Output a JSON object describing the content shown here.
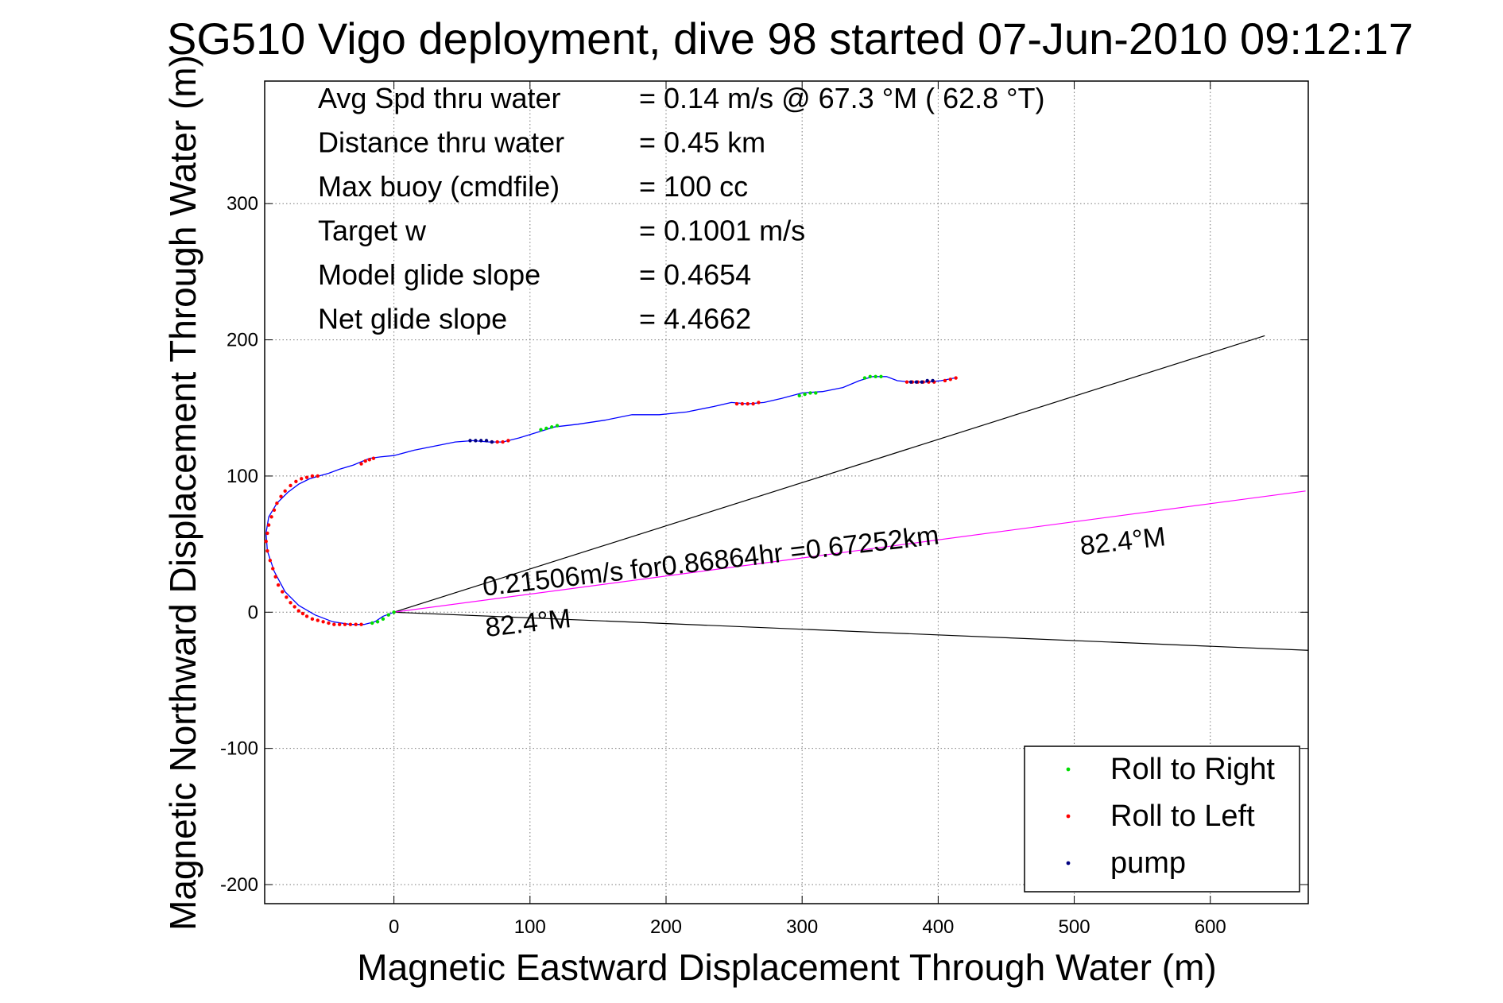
{
  "chart_data": {
    "type": "line",
    "title": "SG510 Vigo deployment, dive 98 started 07-Jun-2010 09:12:17",
    "xlabel": "Magnetic Eastward Displacement Through Water (m)",
    "ylabel": "Magnetic Northward Displacement Through Water (m)",
    "xlim": [
      -95,
      672
    ],
    "ylim": [
      -214,
      390
    ],
    "xticks": [
      0,
      100,
      200,
      300,
      400,
      500,
      600
    ],
    "yticks": [
      -200,
      -100,
      0,
      100,
      200,
      300
    ],
    "grid": true,
    "legend_position": "bottom-right",
    "summary": [
      {
        "label": "Avg Spd thru water",
        "value": "=  0.14 m/s @  67.3 °M ( 62.8 °T)"
      },
      {
        "label": "Distance thru water",
        "value": "=  0.45 km"
      },
      {
        "label": "Max buoy (cmdfile)",
        "value": "= 100 cc"
      },
      {
        "label": "Target w",
        "value": "= 0.1001 m/s"
      },
      {
        "label": "Model glide slope",
        "value": "= 0.4654"
      },
      {
        "label": "Net glide slope",
        "value": "= 4.4662"
      }
    ],
    "track": {
      "x": [
        0,
        -8,
        -14,
        -22,
        -32,
        -45,
        -58,
        -70,
        -80,
        -88,
        -93,
        -94,
        -92,
        -86,
        -78,
        -70,
        -62,
        -55,
        -48,
        -40,
        -30,
        -18,
        -10,
        0,
        15,
        30,
        45,
        58,
        70,
        80,
        92,
        105,
        118,
        135,
        155,
        175,
        195,
        215,
        235,
        248,
        260,
        272,
        285,
        300,
        315,
        330,
        342,
        352,
        362,
        370,
        380,
        392,
        402,
        412
      ],
      "y": [
        0,
        -3,
        -7,
        -9,
        -9,
        -7,
        -2,
        5,
        15,
        30,
        45,
        58,
        70,
        80,
        88,
        94,
        98,
        100,
        102,
        105,
        108,
        113,
        114,
        115,
        119,
        122,
        125,
        126,
        125,
        125,
        128,
        132,
        136,
        138,
        141,
        145,
        145,
        147,
        151,
        154,
        153,
        154,
        157,
        161,
        162,
        165,
        170,
        173,
        173,
        170,
        169,
        169,
        170,
        172
      ]
    },
    "markers": [
      {
        "name": "Roll to Right",
        "color": "#00dd00",
        "x": [
          -16,
          -12,
          -8,
          -4,
          0,
          108,
          112,
          116,
          120,
          298,
          302,
          306,
          310,
          346,
          350,
          354,
          358
        ],
        "y": [
          -8,
          -7,
          -5,
          -2,
          0,
          134,
          135,
          136,
          137,
          159,
          160,
          161,
          161,
          172,
          173,
          173,
          173
        ]
      },
      {
        "name": "Roll to Left",
        "color": "#ff0000",
        "x": [
          -94,
          -93,
          -92,
          -90,
          -88,
          -86,
          -83,
          -80,
          -76,
          -72,
          -68,
          -64,
          -60,
          -56,
          -93,
          -91,
          -89,
          -87,
          -85,
          -82,
          -79,
          -76,
          -73,
          -70,
          -67,
          -64,
          -60,
          -56,
          -52,
          -48,
          -44,
          -40,
          -36,
          -32,
          -28,
          -24,
          -24,
          -21,
          -18,
          -15,
          72,
          76,
          80,
          84,
          252,
          256,
          260,
          264,
          268,
          377,
          381,
          385,
          389,
          393,
          397,
          405,
          409,
          413
        ],
        "y": [
          52,
          58,
          64,
          70,
          75,
          80,
          85,
          89,
          93,
          96,
          98,
          99,
          100,
          100,
          45,
          38,
          32,
          26,
          20,
          15,
          11,
          7,
          4,
          1,
          -1,
          -3,
          -5,
          -6,
          -7,
          -8,
          -9,
          -9,
          -9,
          -9,
          -9,
          -9,
          109,
          111,
          112,
          113,
          125,
          125,
          125,
          126,
          153,
          153,
          153,
          153,
          154,
          169,
          169,
          169,
          169,
          169,
          169,
          170,
          171,
          172
        ]
      },
      {
        "name": "pump",
        "color": "#000080",
        "x": [
          56,
          60,
          64,
          68,
          72,
          380,
          384,
          388,
          392,
          396
        ],
        "y": [
          126,
          126,
          126,
          126,
          125,
          169,
          169,
          169,
          170,
          170
        ]
      }
    ],
    "lines": [
      {
        "name": "heading_upper",
        "color": "#000000",
        "x": [
          0,
          640
        ],
        "y": [
          0,
          203
        ]
      },
      {
        "name": "heading_lower",
        "color": "#000000",
        "x": [
          0,
          672
        ],
        "y": [
          0,
          -28
        ]
      },
      {
        "name": "current",
        "color": "#ff00ff",
        "x": [
          0,
          670
        ],
        "y": [
          0,
          89
        ]
      }
    ],
    "annotations": [
      {
        "text": "0.21506m/s for0.86864hr =0.67252km",
        "x": 66,
        "y": 12,
        "angle": -6.5
      },
      {
        "text": "82.4°M",
        "x": 505,
        "y": 42,
        "angle": -6.5
      },
      {
        "text": "82.4°M",
        "x": 68,
        "y": -18,
        "angle": -6.5
      }
    ]
  }
}
